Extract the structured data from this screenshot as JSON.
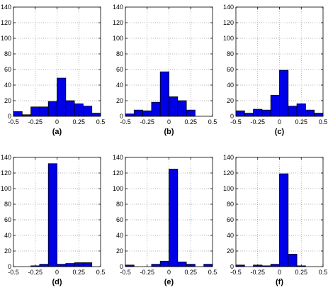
{
  "colors": {
    "bar_fill": "#0000e6",
    "bar_stroke": "#000000",
    "grid": "#9a9a9a",
    "axis": "#000000"
  },
  "chart_data": [
    {
      "type": "bar",
      "label": "(a)",
      "bin_edges": [
        -0.5,
        -0.4,
        -0.3,
        -0.2,
        -0.1,
        0.0,
        0.1,
        0.2,
        0.3,
        0.4,
        0.5
      ],
      "values": [
        6,
        2,
        12,
        12,
        19,
        49,
        20,
        16,
        13,
        4
      ],
      "xlim": [
        -0.5,
        0.5
      ],
      "ylim": [
        0,
        140
      ],
      "xticks": [
        -0.5,
        -0.25,
        0,
        0.25,
        0.5
      ],
      "xticklabels": [
        "-0.5",
        "-0.25",
        "0",
        "0.25",
        "0.5"
      ],
      "yticks": [
        0,
        20,
        40,
        60,
        80,
        100,
        120,
        140
      ],
      "grid": true
    },
    {
      "type": "bar",
      "label": "(b)",
      "bin_edges": [
        -0.5,
        -0.4,
        -0.3,
        -0.2,
        -0.1,
        0.0,
        0.1,
        0.2,
        0.3,
        0.4,
        0.5
      ],
      "values": [
        3,
        8,
        7,
        18,
        57,
        25,
        20,
        8,
        0,
        0
      ],
      "xlim": [
        -0.5,
        0.5
      ],
      "ylim": [
        0,
        140
      ],
      "xticks": [
        -0.5,
        -0.25,
        0,
        0.25,
        0.5
      ],
      "xticklabels": [
        "-0.5",
        "-0.25",
        "0",
        "0.25",
        "0.5"
      ],
      "yticks": [
        0,
        20,
        40,
        60,
        80,
        100,
        120,
        140
      ],
      "grid": true
    },
    {
      "type": "bar",
      "label": "(c)",
      "bin_edges": [
        -0.5,
        -0.4,
        -0.3,
        -0.2,
        -0.1,
        0.0,
        0.1,
        0.2,
        0.3,
        0.4,
        0.5
      ],
      "values": [
        7,
        4,
        9,
        8,
        27,
        59,
        13,
        16,
        8,
        4
      ],
      "xlim": [
        -0.5,
        0.5
      ],
      "ylim": [
        0,
        140
      ],
      "xticks": [
        -0.5,
        -0.25,
        0,
        0.25,
        0.5
      ],
      "xticklabels": [
        "-0.5",
        "-0.25",
        "0",
        "0.25",
        "0.5"
      ],
      "yticks": [
        0,
        20,
        40,
        60,
        80,
        100,
        120,
        140
      ],
      "grid": true
    },
    {
      "type": "bar",
      "label": "(d)",
      "bin_edges": [
        -0.5,
        -0.4,
        -0.3,
        -0.2,
        -0.1,
        0.0,
        0.1,
        0.2,
        0.3,
        0.4,
        0.5
      ],
      "values": [
        0,
        0,
        1,
        3,
        132,
        3,
        4,
        5,
        5,
        0
      ],
      "xlim": [
        -0.5,
        0.5
      ],
      "ylim": [
        0,
        140
      ],
      "xticks": [
        -0.5,
        -0.25,
        0,
        0.25,
        0.5
      ],
      "xticklabels": [
        "-0.5",
        "-0.25",
        "0",
        "0.25",
        "0.5"
      ],
      "yticks": [
        0,
        20,
        40,
        60,
        80,
        100,
        120,
        140
      ],
      "grid": true
    },
    {
      "type": "bar",
      "label": "(e)",
      "bin_edges": [
        -0.5,
        -0.4,
        -0.3,
        -0.2,
        -0.1,
        0.0,
        0.1,
        0.2,
        0.3,
        0.4,
        0.5
      ],
      "values": [
        2,
        0,
        0,
        3,
        7,
        125,
        6,
        3,
        0,
        3
      ],
      "xlim": [
        -0.5,
        0.5
      ],
      "ylim": [
        0,
        140
      ],
      "xticks": [
        -0.5,
        -0.25,
        0,
        0.25,
        0.5
      ],
      "xticklabels": [
        "-0.5",
        "-0.25",
        "0",
        "0.25",
        "0.5"
      ],
      "yticks": [
        0,
        20,
        40,
        60,
        80,
        100,
        120,
        140
      ],
      "grid": true
    },
    {
      "type": "bar",
      "label": "(f)",
      "bin_edges": [
        -0.5,
        -0.4,
        -0.3,
        -0.2,
        -0.1,
        0.0,
        0.1,
        0.2,
        0.3,
        0.4,
        0.5
      ],
      "values": [
        2,
        0,
        2,
        1,
        3,
        119,
        16,
        1,
        0,
        0
      ],
      "xlim": [
        -0.5,
        0.5
      ],
      "ylim": [
        0,
        140
      ],
      "xticks": [
        -0.5,
        -0.25,
        0,
        0.25,
        0.5
      ],
      "xticklabels": [
        "-0.5",
        "-0.25",
        "0",
        "0.25",
        "0.5"
      ],
      "yticks": [
        0,
        20,
        40,
        60,
        80,
        100,
        120,
        140
      ],
      "grid": true
    }
  ]
}
